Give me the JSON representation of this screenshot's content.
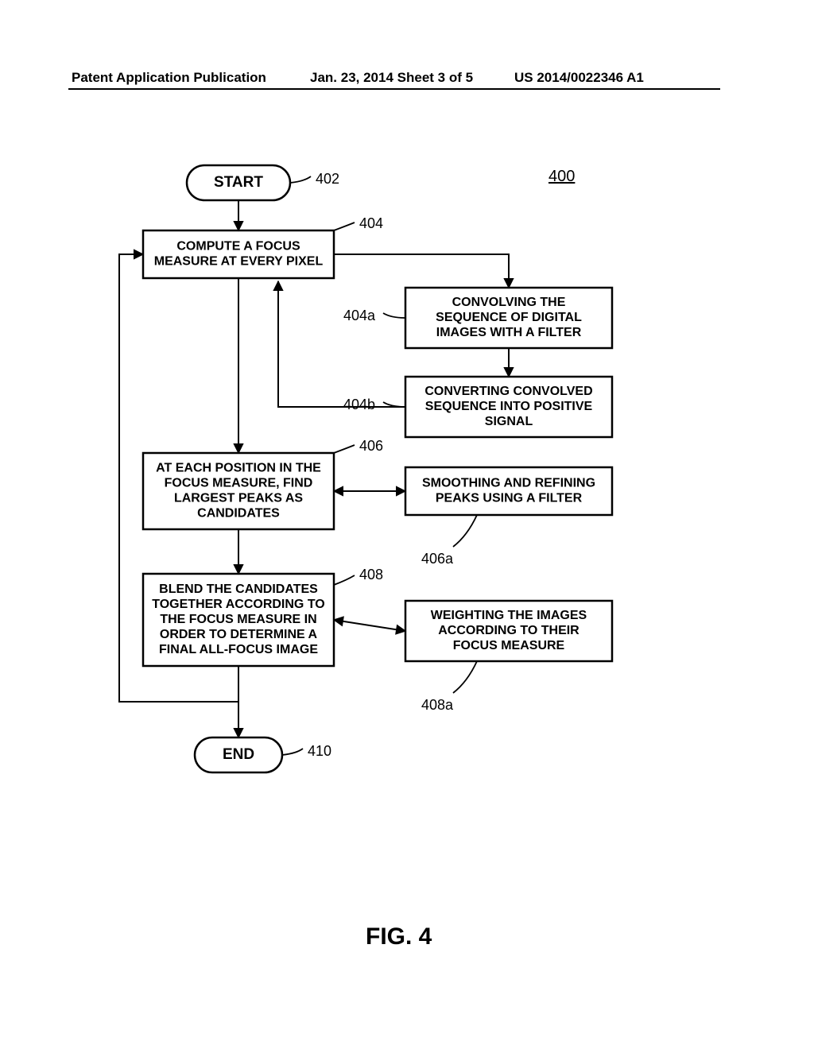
{
  "header": {
    "left": "Patent Application Publication",
    "center": "Jan. 23, 2014  Sheet 3 of 5",
    "right": "US 2014/0022346 A1"
  },
  "figure": {
    "title": "FIG. 4",
    "number_ref": "400",
    "nodes": {
      "start": {
        "label": "START",
        "ref": "402",
        "fontsize": 19
      },
      "n404": {
        "label": "COMPUTE A FOCUS\nMEASURE AT EVERY PIXEL",
        "ref": "404",
        "fontsize": 16
      },
      "n404a": {
        "label": "CONVOLVING THE\nSEQUENCE OF DIGITAL\nIMAGES WITH A FILTER",
        "ref": "404a",
        "fontsize": 16
      },
      "n404b": {
        "label": "CONVERTING CONVOLVED\nSEQUENCE INTO POSITIVE\nSIGNAL",
        "ref": "404b",
        "fontsize": 16
      },
      "n406": {
        "label": "AT EACH POSITION IN THE\nFOCUS MEASURE, FIND\nLARGEST PEAKS AS\nCANDIDATES",
        "ref": "406",
        "fontsize": 16
      },
      "n406a": {
        "label": "SMOOTHING AND REFINING\nPEAKS USING A FILTER",
        "ref": "406a",
        "fontsize": 16
      },
      "n408": {
        "label": "BLEND THE CANDIDATES\nTOGETHER ACCORDING TO\nTHE FOCUS MEASURE IN\nORDER TO DETERMINE A\nFINAL ALL-FOCUS IMAGE",
        "ref": "408",
        "fontsize": 16
      },
      "n408a": {
        "label": "WEIGHTING THE IMAGES\nACCORDING TO THEIR\nFOCUS MEASURE",
        "ref": "408a",
        "fontsize": 16
      },
      "end": {
        "label": "END",
        "ref": "410",
        "fontsize": 19
      }
    },
    "style": {
      "stroke": "#000000",
      "stroke_width": 2.5,
      "stroke_width_thin": 2,
      "background": "#ffffff",
      "text_color": "#000000",
      "ref_fontsize": 18,
      "linegap": 19
    }
  }
}
